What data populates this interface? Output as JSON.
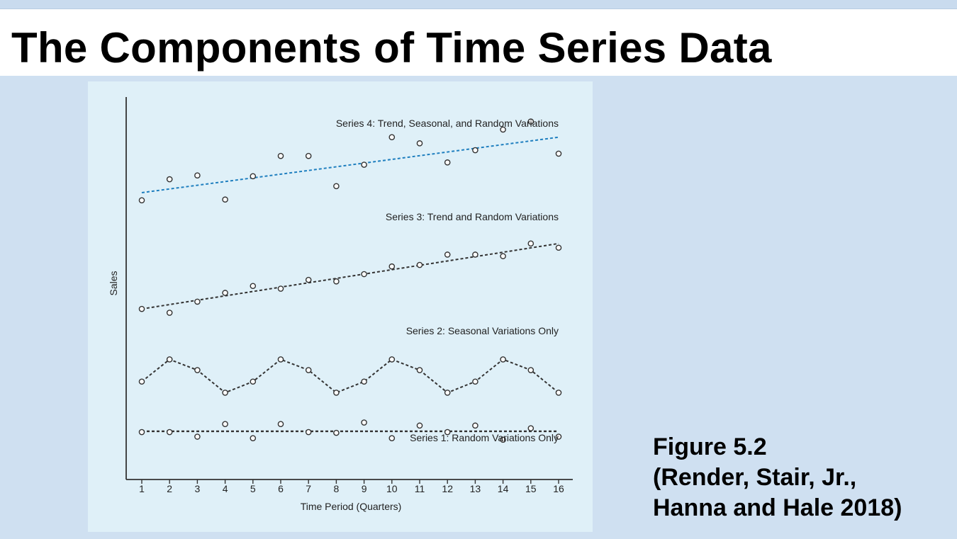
{
  "slide": {
    "title": "The Components of Time Series Data",
    "caption_lines": [
      "Figure 5.2",
      "(Render, Stair, Jr.,",
      "Hanna and Hale 2018)"
    ]
  },
  "colors": {
    "background": "#cfe0f1",
    "figure_background": "#dff0f8",
    "trend_line_series4": "#1f7fbf",
    "dark_line": "#333333"
  },
  "chart_data": {
    "type": "scatter",
    "xlabel": "Time Period (Quarters)",
    "ylabel": "Sales",
    "x": [
      1,
      2,
      3,
      4,
      5,
      6,
      7,
      8,
      9,
      10,
      11,
      12,
      13,
      14,
      15,
      16
    ],
    "xlim": [
      0.5,
      16.5
    ],
    "ylim": [
      0,
      100
    ],
    "series": [
      {
        "name": "Series 4: Trend, Seasonal, and Random Variations",
        "values": [
          73,
          78.5,
          79.5,
          73.2,
          79.3,
          84.6,
          84.6,
          76.7,
          82.3,
          89.5,
          87.9,
          82.9,
          86.1,
          91.5,
          93.6,
          85.2
        ],
        "line": "trend",
        "trend": [
          75,
          89.5
        ]
      },
      {
        "name": "Series 3: Trend and Random Variations",
        "values": [
          44.6,
          43.6,
          46.5,
          48.8,
          50.6,
          49.9,
          52.2,
          51.8,
          53.7,
          55.7,
          56.1,
          58.8,
          58.8,
          58.4,
          61.7,
          60.6
        ],
        "line": "trend",
        "trend": [
          44.6,
          61.7
        ]
      },
      {
        "name": "Series 2: Seasonal Variations Only",
        "values": [
          25.6,
          31.4,
          28.6,
          22.7,
          25.6,
          31.4,
          28.6,
          22.7,
          25.6,
          31.4,
          28.6,
          22.7,
          25.6,
          31.4,
          28.6,
          22.7
        ],
        "line": "connect"
      },
      {
        "name": "Series 1: Random Variations Only",
        "values": [
          12.4,
          12.4,
          11.2,
          14.5,
          10.8,
          14.5,
          12.4,
          12.2,
          14.9,
          10.8,
          14.1,
          12.4,
          14.1,
          10.4,
          13.4,
          11.2
        ],
        "line": "mean",
        "mean": 12.6
      }
    ]
  }
}
